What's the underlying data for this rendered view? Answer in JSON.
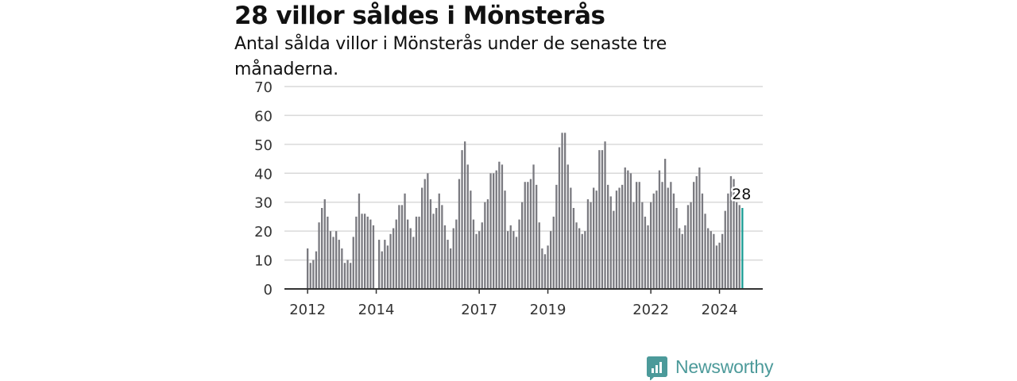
{
  "header": {
    "title": "28 villor såldes i Mönsterås",
    "subtitle": "Antal sålda villor i Mönsterås under de senaste tre månaderna."
  },
  "brand": {
    "name": "Newsworthy",
    "icon": "newsworthy-logo-icon",
    "color": "#4c9a9a"
  },
  "colors": {
    "bar": "#7a7a80",
    "highlight": "#1a9c94",
    "grid": "#d9d9d9",
    "axis": "#333333"
  },
  "chart_data": {
    "type": "bar",
    "title": "28 villor såldes i Mönsterås",
    "subtitle": "Antal sålda villor i Mönsterås under de senaste tre månaderna.",
    "xlabel": "",
    "ylabel": "",
    "ylim": [
      0,
      70
    ],
    "yticks": [
      "0",
      "10",
      "20",
      "30",
      "40",
      "50",
      "60",
      "70"
    ],
    "xticks": [
      "2012",
      "2014",
      "2017",
      "2019",
      "2022",
      "2024"
    ],
    "grid": true,
    "legend": "none",
    "series": [
      {
        "values": [
          14,
          9,
          10,
          13,
          23,
          28,
          31,
          25,
          20,
          18,
          20,
          17,
          14,
          9,
          10,
          9,
          18,
          25,
          33,
          26,
          26,
          25,
          24,
          22,
          0,
          17,
          13,
          17,
          15,
          19,
          21,
          24,
          29,
          29,
          33,
          24,
          21,
          18,
          25,
          25,
          35,
          38,
          40,
          31,
          26,
          28,
          33,
          29,
          22,
          17,
          14,
          21,
          24,
          38,
          48,
          51,
          43,
          34,
          24,
          19,
          20,
          23,
          30,
          31,
          40,
          40,
          41,
          44,
          43,
          34,
          20,
          22,
          20,
          18,
          24,
          30,
          37,
          37,
          38,
          43,
          36,
          23,
          14,
          12,
          15,
          20,
          25,
          36,
          49,
          54,
          54,
          43,
          35,
          28,
          23,
          21,
          19,
          20,
          31,
          30,
          35,
          34,
          48,
          48,
          51,
          36,
          32,
          27,
          34,
          35,
          36,
          42,
          41,
          40,
          30,
          37,
          37,
          30,
          25,
          22,
          30,
          33,
          34,
          41,
          37,
          45,
          35,
          37,
          33,
          28,
          21,
          19,
          22,
          29,
          30,
          37,
          39,
          42,
          33,
          26,
          21,
          20,
          19,
          15,
          16,
          19,
          27,
          33,
          39,
          38,
          30,
          29,
          28
        ],
        "annotation": "28"
      }
    ]
  }
}
